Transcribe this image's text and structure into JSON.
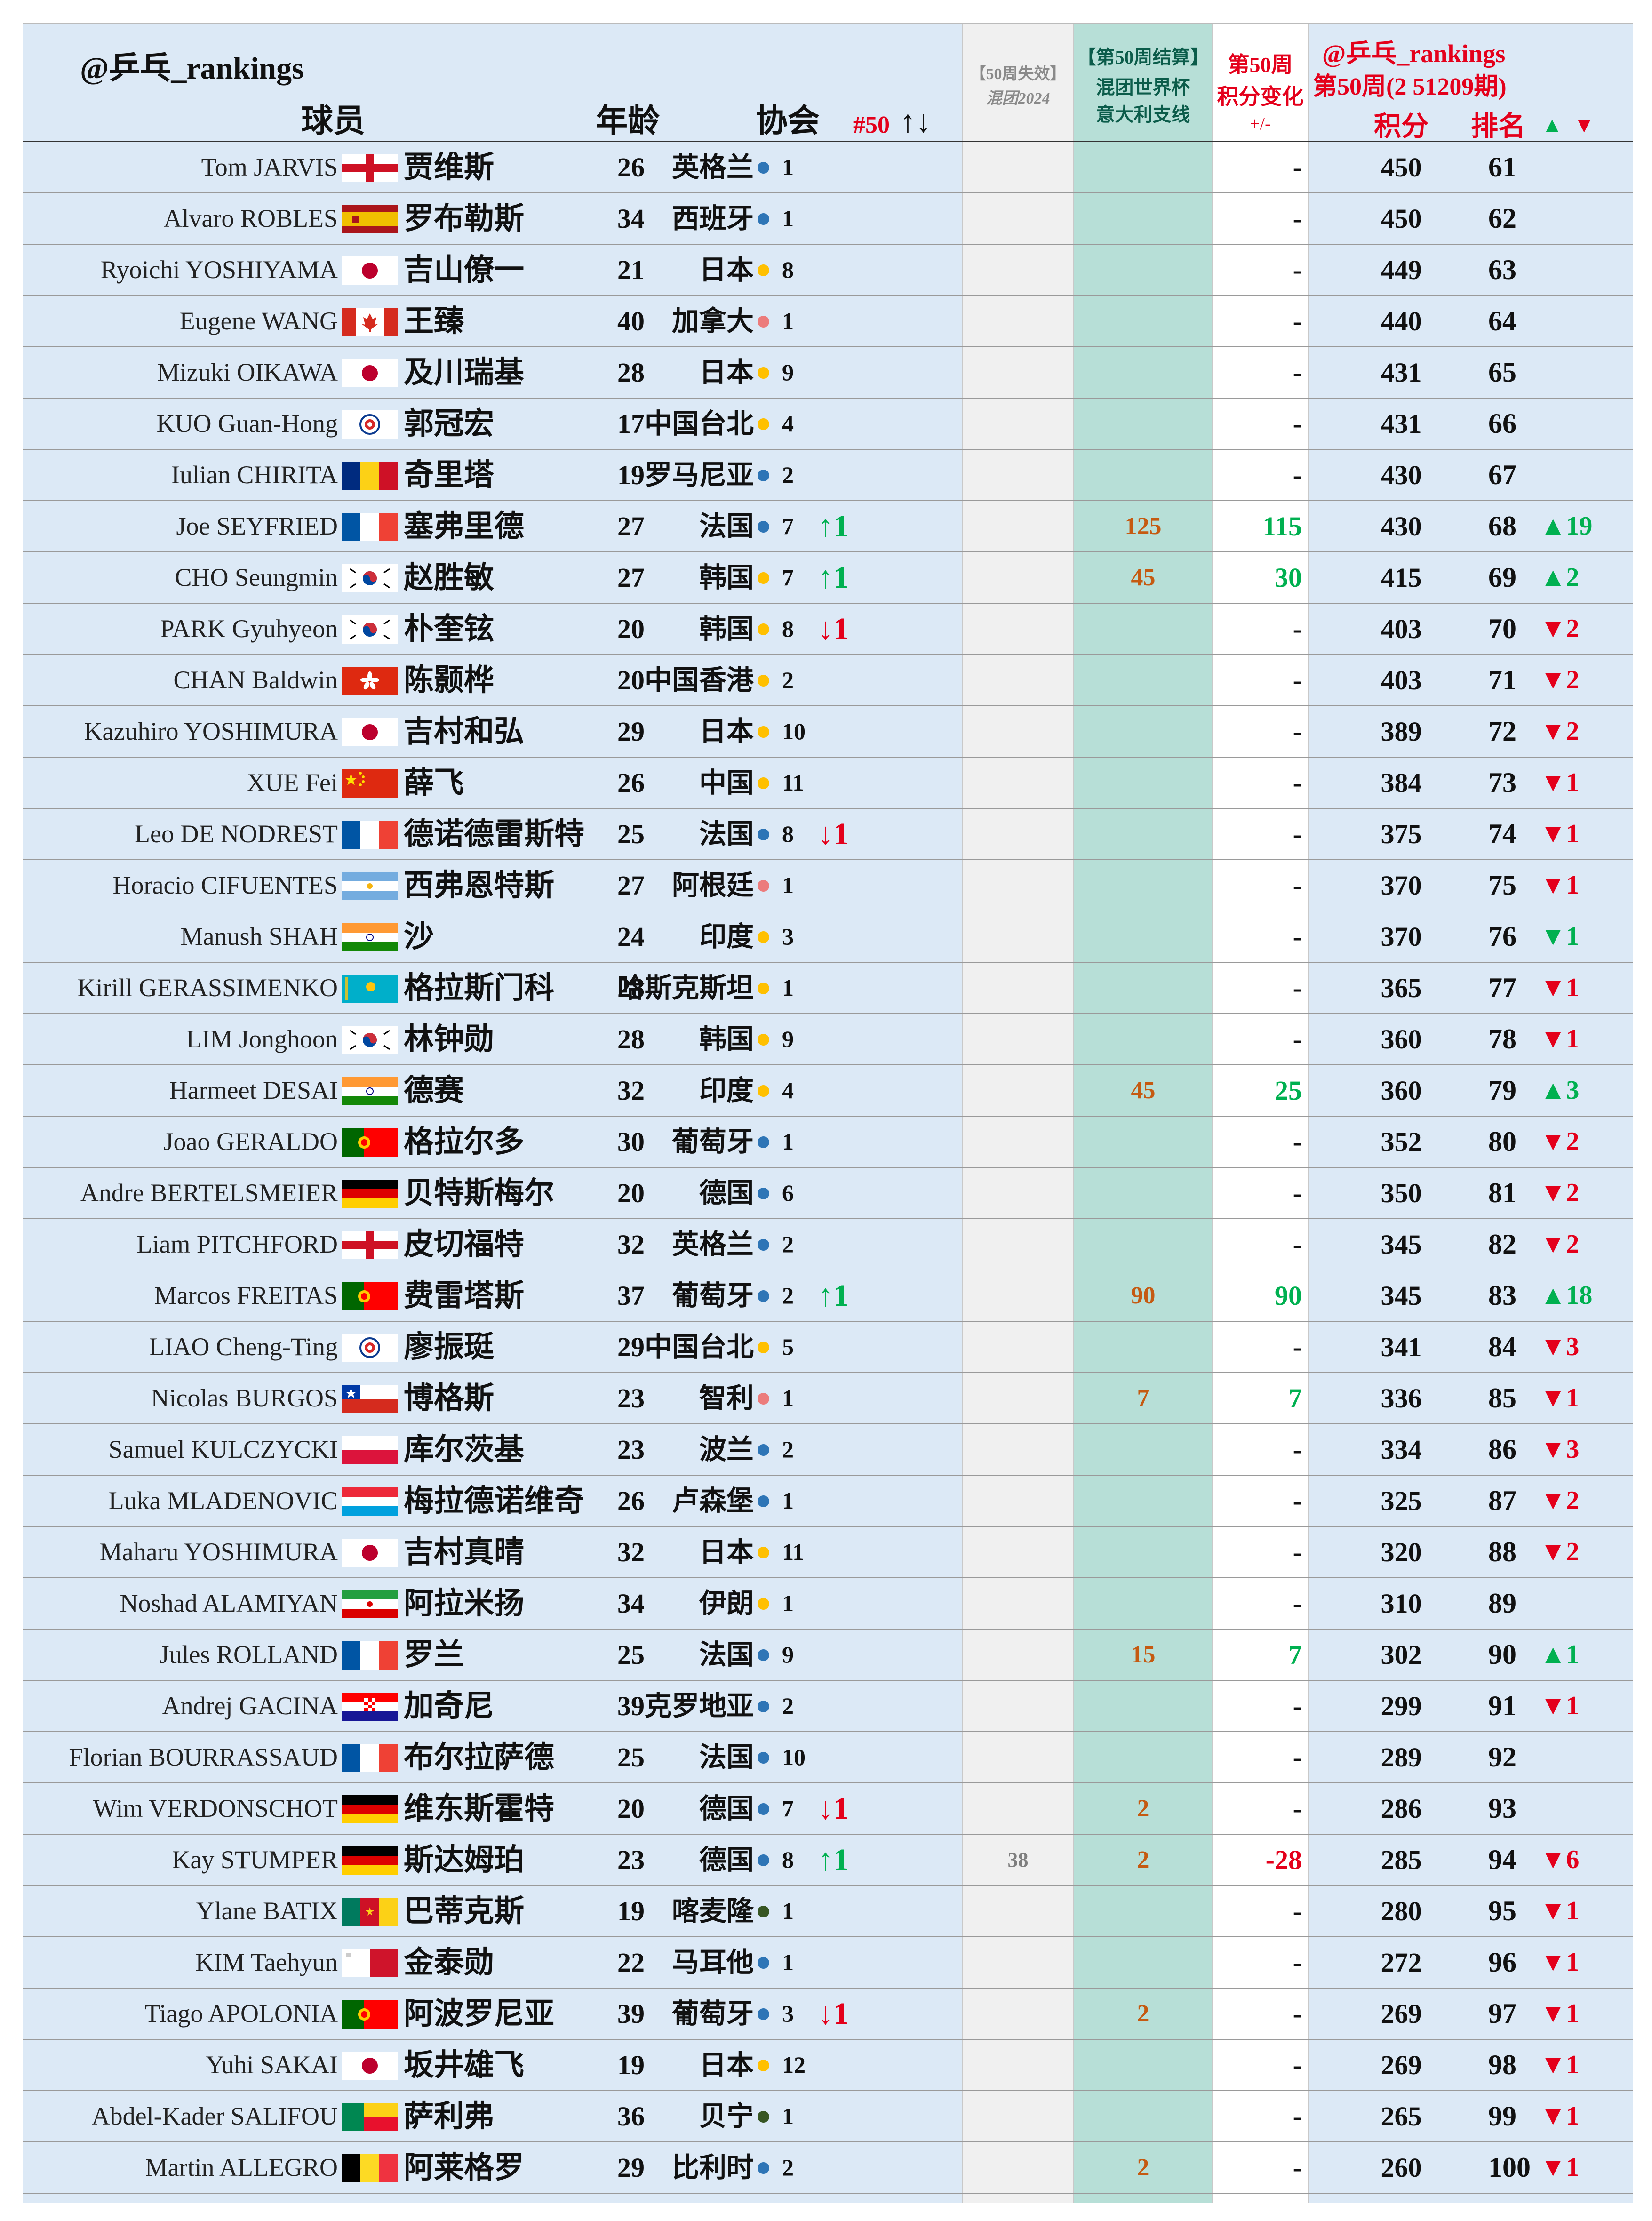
{
  "header": {
    "account": "@乒乓_rankings",
    "col_player": "球员",
    "col_age": "年龄",
    "col_assoc": "协会",
    "col_count": "#50",
    "col_count_arrows": "↑↓",
    "col_lost_line1": "【50周失效】",
    "col_lost_line2": "混团2024",
    "col_wc_line1": "【第50周结算】",
    "col_wc_line2": "混团世界杯",
    "col_wc_line3": "意大利支线",
    "col_change_line1": "第50周",
    "col_change_line2": "积分变化",
    "col_change_line3": "+/-",
    "right_account": "@乒乓_rankings",
    "right_period": "第50周(2 51209期)",
    "col_points": "积分",
    "col_rank": "排名",
    "col_rank_up": "▲",
    "col_rank_down": "▼"
  },
  "colors": {
    "europe_blue": "#2e75b6",
    "asia_yellow": "#ffc000",
    "americas_pink": "#ec7c7c",
    "africa_green": "#375623",
    "up_green": "#00b050",
    "down_red": "#e4001b",
    "wc_orange": "#c55a11"
  },
  "rows": [
    {
      "en": "Tom JARVIS",
      "flag": "england-flag",
      "cn": "贾维斯",
      "age": "26",
      "assoc": "英格兰",
      "region": "europe",
      "count": "1",
      "arrow": "",
      "lost": "",
      "wc": "",
      "change": "-",
      "points": "450",
      "rank": "61",
      "move": ""
    },
    {
      "en": "Alvaro ROBLES",
      "flag": "spain-flag",
      "cn": "罗布勒斯",
      "age": "34",
      "assoc": "西班牙",
      "region": "europe",
      "count": "1",
      "arrow": "",
      "lost": "",
      "wc": "",
      "change": "-",
      "points": "450",
      "rank": "62",
      "move": ""
    },
    {
      "en": "Ryoichi YOSHIYAMA",
      "flag": "japan-flag",
      "cn": "吉山僚一",
      "age": "21",
      "assoc": "日本",
      "region": "asia",
      "count": "8",
      "arrow": "",
      "lost": "",
      "wc": "",
      "change": "-",
      "points": "449",
      "rank": "63",
      "move": ""
    },
    {
      "en": "Eugene WANG",
      "flag": "canada-flag",
      "cn": "王臻",
      "age": "40",
      "assoc": "加拿大",
      "region": "americas",
      "count": "1",
      "arrow": "",
      "lost": "",
      "wc": "",
      "change": "-",
      "points": "440",
      "rank": "64",
      "move": ""
    },
    {
      "en": "Mizuki OIKAWA",
      "flag": "japan-flag",
      "cn": "及川瑞基",
      "age": "28",
      "assoc": "日本",
      "region": "asia",
      "count": "9",
      "arrow": "",
      "lost": "",
      "wc": "",
      "change": "-",
      "points": "431",
      "rank": "65",
      "move": ""
    },
    {
      "en": "KUO Guan-Hong",
      "flag": "chinese-taipei-flag",
      "cn": "郭冠宏",
      "age": "17",
      "assoc": "中国台北",
      "region": "asia",
      "count": "4",
      "arrow": "",
      "lost": "",
      "wc": "",
      "change": "-",
      "points": "431",
      "rank": "66",
      "move": ""
    },
    {
      "en": "Iulian CHIRITA",
      "flag": "romania-flag",
      "cn": "奇里塔",
      "age": "19",
      "assoc": "罗马尼亚",
      "region": "europe",
      "count": "2",
      "arrow": "",
      "lost": "",
      "wc": "",
      "change": "-",
      "points": "430",
      "rank": "67",
      "move": ""
    },
    {
      "en": "Joe SEYFRIED",
      "flag": "france-flag",
      "cn": "塞弗里德",
      "age": "27",
      "assoc": "法国",
      "region": "europe",
      "count": "7",
      "arrow": "↑1",
      "arrow_dir": "up",
      "lost": "",
      "wc": "125",
      "change": "115",
      "change_dir": "up",
      "points": "430",
      "rank": "68",
      "move": "▲19",
      "move_dir": "up"
    },
    {
      "en": "CHO Seungmin",
      "flag": "korea-flag",
      "cn": "赵胜敏",
      "age": "27",
      "assoc": "韩国",
      "region": "asia",
      "count": "7",
      "arrow": "↑1",
      "arrow_dir": "up",
      "lost": "",
      "wc": "45",
      "change": "30",
      "change_dir": "up",
      "points": "415",
      "rank": "69",
      "move": "▲2",
      "move_dir": "up"
    },
    {
      "en": "PARK Gyuhyeon",
      "flag": "korea-flag",
      "cn": "朴奎铉",
      "age": "20",
      "assoc": "韩国",
      "region": "asia",
      "count": "8",
      "arrow": "↓1",
      "arrow_dir": "down",
      "lost": "",
      "wc": "",
      "change": "-",
      "points": "403",
      "rank": "70",
      "move": "▼2",
      "move_dir": "down"
    },
    {
      "en": "CHAN Baldwin",
      "flag": "hong-kong-flag",
      "cn": "陈颢桦",
      "age": "20",
      "assoc": "中国香港",
      "region": "asia",
      "count": "2",
      "arrow": "",
      "lost": "",
      "wc": "",
      "change": "-",
      "points": "403",
      "rank": "71",
      "move": "▼2",
      "move_dir": "down"
    },
    {
      "en": "Kazuhiro YOSHIMURA",
      "flag": "japan-flag",
      "cn": "吉村和弘",
      "age": "29",
      "assoc": "日本",
      "region": "asia",
      "count": "10",
      "arrow": "",
      "lost": "",
      "wc": "",
      "change": "-",
      "points": "389",
      "rank": "72",
      "move": "▼2",
      "move_dir": "down"
    },
    {
      "en": "XUE Fei",
      "flag": "china-flag",
      "cn": "薛飞",
      "age": "26",
      "assoc": "中国",
      "region": "asia",
      "count": "11",
      "arrow": "",
      "lost": "",
      "wc": "",
      "change": "-",
      "points": "384",
      "rank": "73",
      "move": "▼1",
      "move_dir": "down"
    },
    {
      "en": "Leo DE NODREST",
      "flag": "france-flag",
      "cn": "德诺德雷斯特",
      "age": "25",
      "assoc": "法国",
      "region": "europe",
      "count": "8",
      "arrow": "↓1",
      "arrow_dir": "down",
      "lost": "",
      "wc": "",
      "change": "-",
      "points": "375",
      "rank": "74",
      "move": "▼1",
      "move_dir": "down"
    },
    {
      "en": "Horacio CIFUENTES",
      "flag": "argentina-flag",
      "cn": "西弗恩特斯",
      "age": "27",
      "assoc": "阿根廷",
      "region": "americas",
      "count": "1",
      "arrow": "",
      "lost": "",
      "wc": "",
      "change": "-",
      "points": "370",
      "rank": "75",
      "move": "▼1",
      "move_dir": "down"
    },
    {
      "en": "Manush SHAH",
      "flag": "india-flag",
      "cn": "沙",
      "age": "24",
      "assoc": "印度",
      "region": "asia",
      "count": "3",
      "arrow": "",
      "lost": "",
      "wc": "",
      "change": "-",
      "points": "370",
      "rank": "76",
      "move": "▼1",
      "move_dir": "up"
    },
    {
      "en": "Kirill GERASSIMENKO",
      "flag": "kazakhstan-flag",
      "cn": "格拉斯门科",
      "age": "28",
      "assoc": "哈斯克斯坦",
      "region": "asia",
      "count": "1",
      "arrow": "",
      "lost": "",
      "wc": "",
      "change": "-",
      "points": "365",
      "rank": "77",
      "move": "▼1",
      "move_dir": "down"
    },
    {
      "en": "LIM Jonghoon",
      "flag": "korea-flag",
      "cn": "林钟勋",
      "age": "28",
      "assoc": "韩国",
      "region": "asia",
      "count": "9",
      "arrow": "",
      "lost": "",
      "wc": "",
      "change": "-",
      "points": "360",
      "rank": "78",
      "move": "▼1",
      "move_dir": "down"
    },
    {
      "en": "Harmeet DESAI",
      "flag": "india-flag",
      "cn": "德赛",
      "age": "32",
      "assoc": "印度",
      "region": "asia",
      "count": "4",
      "arrow": "",
      "lost": "",
      "wc": "45",
      "change": "25",
      "change_dir": "up",
      "points": "360",
      "rank": "79",
      "move": "▲3",
      "move_dir": "up"
    },
    {
      "en": "Joao GERALDO",
      "flag": "portugal-flag",
      "cn": "格拉尔多",
      "age": "30",
      "assoc": "葡萄牙",
      "region": "europe",
      "count": "1",
      "arrow": "",
      "lost": "",
      "wc": "",
      "change": "-",
      "points": "352",
      "rank": "80",
      "move": "▼2",
      "move_dir": "down"
    },
    {
      "en": "Andre BERTELSMEIER",
      "flag": "germany-flag",
      "cn": "贝特斯梅尔",
      "age": "20",
      "assoc": "德国",
      "region": "europe",
      "count": "6",
      "arrow": "",
      "lost": "",
      "wc": "",
      "change": "-",
      "points": "350",
      "rank": "81",
      "move": "▼2",
      "move_dir": "down"
    },
    {
      "en": "Liam PITCHFORD",
      "flag": "england-flag",
      "cn": "皮切福特",
      "age": "32",
      "assoc": "英格兰",
      "region": "europe",
      "count": "2",
      "arrow": "",
      "lost": "",
      "wc": "",
      "change": "-",
      "points": "345",
      "rank": "82",
      "move": "▼2",
      "move_dir": "down"
    },
    {
      "en": "Marcos FREITAS",
      "flag": "portugal-flag",
      "cn": "费雷塔斯",
      "age": "37",
      "assoc": "葡萄牙",
      "region": "europe",
      "count": "2",
      "arrow": "↑1",
      "arrow_dir": "up",
      "lost": "",
      "wc": "90",
      "change": "90",
      "change_dir": "up",
      "points": "345",
      "rank": "83",
      "move": "▲18",
      "move_dir": "up"
    },
    {
      "en": "LIAO Cheng-Ting",
      "flag": "chinese-taipei-flag",
      "cn": "廖振珽",
      "age": "29",
      "assoc": "中国台北",
      "region": "asia",
      "count": "5",
      "arrow": "",
      "lost": "",
      "wc": "",
      "change": "-",
      "points": "341",
      "rank": "84",
      "move": "▼3",
      "move_dir": "down"
    },
    {
      "en": "Nicolas BURGOS",
      "flag": "chile-flag",
      "cn": "博格斯",
      "age": "23",
      "assoc": "智利",
      "region": "americas",
      "count": "1",
      "arrow": "",
      "lost": "",
      "wc": "7",
      "change": "7",
      "change_dir": "up",
      "points": "336",
      "rank": "85",
      "move": "▼1",
      "move_dir": "down"
    },
    {
      "en": "Samuel KULCZYCKI",
      "flag": "poland-flag",
      "cn": "库尔茨基",
      "age": "23",
      "assoc": "波兰",
      "region": "europe",
      "count": "2",
      "arrow": "",
      "lost": "",
      "wc": "",
      "change": "-",
      "points": "334",
      "rank": "86",
      "move": "▼3",
      "move_dir": "down"
    },
    {
      "en": "Luka MLADENOVIC",
      "flag": "luxembourg-flag",
      "cn": "梅拉德诺维奇",
      "age": "26",
      "assoc": "卢森堡",
      "region": "europe",
      "count": "1",
      "arrow": "",
      "lost": "",
      "wc": "",
      "change": "-",
      "points": "325",
      "rank": "87",
      "move": "▼2",
      "move_dir": "down"
    },
    {
      "en": "Maharu YOSHIMURA",
      "flag": "japan-flag",
      "cn": "吉村真晴",
      "age": "32",
      "assoc": "日本",
      "region": "asia",
      "count": "11",
      "arrow": "",
      "lost": "",
      "wc": "",
      "change": "-",
      "points": "320",
      "rank": "88",
      "move": "▼2",
      "move_dir": "down"
    },
    {
      "en": "Noshad ALAMIYAN",
      "flag": "iran-flag",
      "cn": "阿拉米扬",
      "age": "34",
      "assoc": "伊朗",
      "region": "asia",
      "count": "1",
      "arrow": "",
      "lost": "",
      "wc": "",
      "change": "-",
      "points": "310",
      "rank": "89",
      "move": ""
    },
    {
      "en": "Jules ROLLAND",
      "flag": "france-flag",
      "cn": "罗兰",
      "age": "25",
      "assoc": "法国",
      "region": "europe",
      "count": "9",
      "arrow": "",
      "lost": "",
      "wc": "15",
      "change": "7",
      "change_dir": "up",
      "points": "302",
      "rank": "90",
      "move": "▲1",
      "move_dir": "up"
    },
    {
      "en": "Andrej GACINA",
      "flag": "croatia-flag",
      "cn": "加奇尼",
      "age": "39",
      "assoc": "克罗地亚",
      "region": "europe",
      "count": "2",
      "arrow": "",
      "lost": "",
      "wc": "",
      "change": "-",
      "points": "299",
      "rank": "91",
      "move": "▼1",
      "move_dir": "down"
    },
    {
      "en": "Florian BOURRASSAUD",
      "flag": "france-flag",
      "cn": "布尔拉萨德",
      "age": "25",
      "assoc": "法国",
      "region": "europe",
      "count": "10",
      "arrow": "",
      "lost": "",
      "wc": "",
      "change": "-",
      "points": "289",
      "rank": "92",
      "move": ""
    },
    {
      "en": "Wim VERDONSCHOT",
      "flag": "germany-flag",
      "cn": "维东斯霍特",
      "age": "20",
      "assoc": "德国",
      "region": "europe",
      "count": "7",
      "arrow": "↓1",
      "arrow_dir": "down",
      "lost": "",
      "wc": "2",
      "change": "-",
      "points": "286",
      "rank": "93",
      "move": ""
    },
    {
      "en": "Kay STUMPER",
      "flag": "germany-flag",
      "cn": "斯达姆珀",
      "age": "23",
      "assoc": "德国",
      "region": "europe",
      "count": "8",
      "arrow": "↑1",
      "arrow_dir": "up",
      "lost": "38",
      "wc": "2",
      "change": "-28",
      "change_dir": "down",
      "points": "285",
      "rank": "94",
      "move": "▼6",
      "move_dir": "down"
    },
    {
      "en": "Ylane BATIX",
      "flag": "cameroon-flag",
      "cn": "巴蒂克斯",
      "age": "19",
      "assoc": "喀麦隆",
      "region": "africa",
      "count": "1",
      "arrow": "",
      "lost": "",
      "wc": "",
      "change": "-",
      "points": "280",
      "rank": "95",
      "move": "▼1",
      "move_dir": "down"
    },
    {
      "en": "KIM Taehyun",
      "flag": "malta-flag",
      "cn": "金泰勋",
      "age": "22",
      "assoc": "马耳他",
      "region": "europe",
      "count": "1",
      "arrow": "",
      "lost": "",
      "wc": "",
      "change": "-",
      "points": "272",
      "rank": "96",
      "move": "▼1",
      "move_dir": "down"
    },
    {
      "en": "Tiago APOLONIA",
      "flag": "portugal-flag",
      "cn": "阿波罗尼亚",
      "age": "39",
      "assoc": "葡萄牙",
      "region": "europe",
      "count": "3",
      "arrow": "↓1",
      "arrow_dir": "down",
      "lost": "",
      "wc": "2",
      "change": "-",
      "points": "269",
      "rank": "97",
      "move": "▼1",
      "move_dir": "down"
    },
    {
      "en": "Yuhi SAKAI",
      "flag": "japan-flag",
      "cn": "坂井雄飞",
      "age": "19",
      "assoc": "日本",
      "region": "asia",
      "count": "12",
      "arrow": "",
      "lost": "",
      "wc": "",
      "change": "-",
      "points": "269",
      "rank": "98",
      "move": "▼1",
      "move_dir": "down"
    },
    {
      "en": "Abdel-Kader SALIFOU",
      "flag": "benin-flag",
      "cn": "萨利弗",
      "age": "36",
      "assoc": "贝宁",
      "region": "africa",
      "count": "1",
      "arrow": "",
      "lost": "",
      "wc": "",
      "change": "-",
      "points": "265",
      "rank": "99",
      "move": "▼1",
      "move_dir": "down"
    },
    {
      "en": "Martin ALLEGRO",
      "flag": "belgium-flag",
      "cn": "阿莱格罗",
      "age": "29",
      "assoc": "比利时",
      "region": "europe",
      "count": "2",
      "arrow": "",
      "lost": "",
      "wc": "2",
      "change": "-",
      "points": "260",
      "rank": "100",
      "move": "▼1",
      "move_dir": "down"
    }
  ]
}
